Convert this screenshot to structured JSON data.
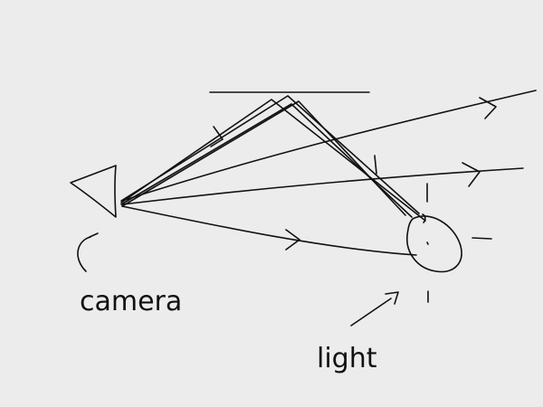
{
  "labels": {
    "camera": "camera",
    "light": "light"
  },
  "colors": {
    "background": "#ececec",
    "ink": "#111111"
  }
}
